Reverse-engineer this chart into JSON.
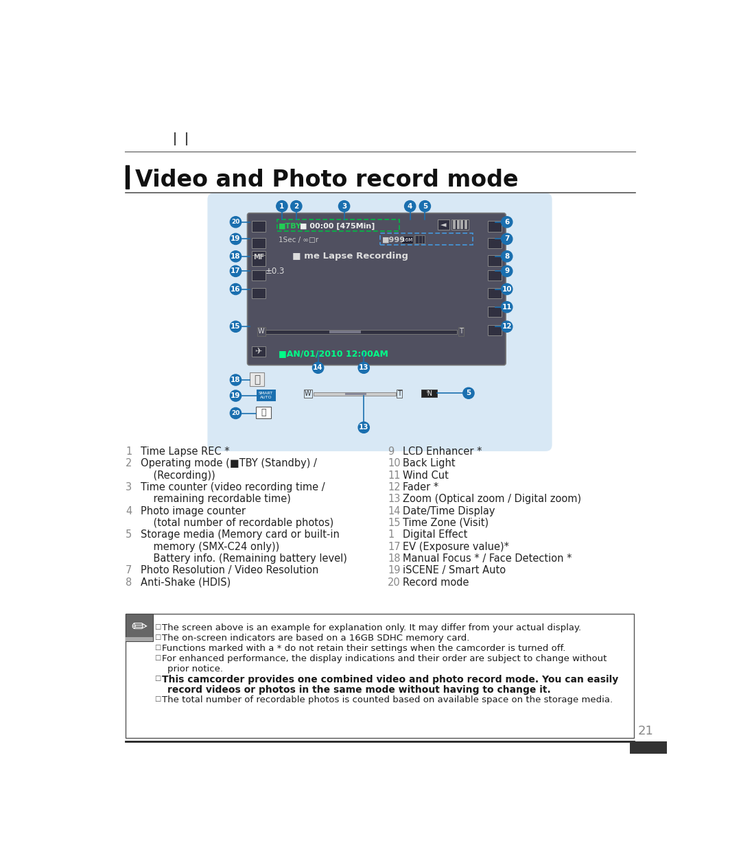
{
  "title": "Video and Photo record mode",
  "bg_color": "#ffffff",
  "blue_bg": "#dce8f5",
  "lcd_dark": "#4a4a5a",
  "blue_circle": "#1a6faf",
  "left_items": [
    [
      1,
      "Time Lapse REC *",
      false
    ],
    [
      2,
      "Operating mode (■TBY (Standby) /",
      false
    ],
    [
      "",
      "    (Recording))",
      false
    ],
    [
      3,
      "Time counter (video recording time /",
      false
    ],
    [
      "",
      "    remaining recordable time)",
      false
    ],
    [
      4,
      "Photo image counter",
      false
    ],
    [
      "",
      "    (total number of recordable photos)",
      false
    ],
    [
      5,
      "Storage media (Memory card or built-in",
      false
    ],
    [
      "",
      "    memory (SMX-C24 only))",
      false
    ],
    [
      "",
      "    Battery info. (Remaining battery level)",
      false
    ],
    [
      7,
      "Photo Resolution / Video Resolution",
      false
    ],
    [
      8,
      "Anti-Shake (HDIS)",
      false
    ]
  ],
  "right_items": [
    [
      9,
      "LCD Enhancer *",
      false
    ],
    [
      10,
      "Back Light",
      false
    ],
    [
      11,
      "Wind Cut",
      false
    ],
    [
      12,
      "Fader *",
      false
    ],
    [
      13,
      "Zoom (Optical zoom / Digital zoom)",
      false
    ],
    [
      14,
      "Date/Time Display",
      false
    ],
    [
      15,
      "Time Zone (Visit)",
      false
    ],
    [
      1,
      "Digital Effect",
      false
    ],
    [
      17,
      "EV (Exposure value)*",
      false
    ],
    [
      18,
      "Manual Focus * / Face Detection *",
      false
    ],
    [
      19,
      "iSCENE / Smart Auto",
      false
    ],
    [
      20,
      "Record mode",
      false
    ]
  ],
  "notes": [
    [
      "normal",
      "The screen above is an example for explanation only. It may differ from your actual display."
    ],
    [
      "normal",
      "The on-screen indicators are based on a 16GB SDHC memory card."
    ],
    [
      "normal",
      "Functions marked with a * do not retain their settings when the camcorder is turned off."
    ],
    [
      "normal",
      "For enhanced performance, the display indications and their order are subject to change without"
    ],
    [
      "normal",
      "prior notice."
    ],
    [
      "bold",
      "This camcorder provides one combined video and photo record mode. You can easily"
    ],
    [
      "bold",
      "record videos or photos in the same mode without having to change it."
    ],
    [
      "normal",
      "The total number of recordable photos is counted based on available space on the storage media."
    ]
  ]
}
